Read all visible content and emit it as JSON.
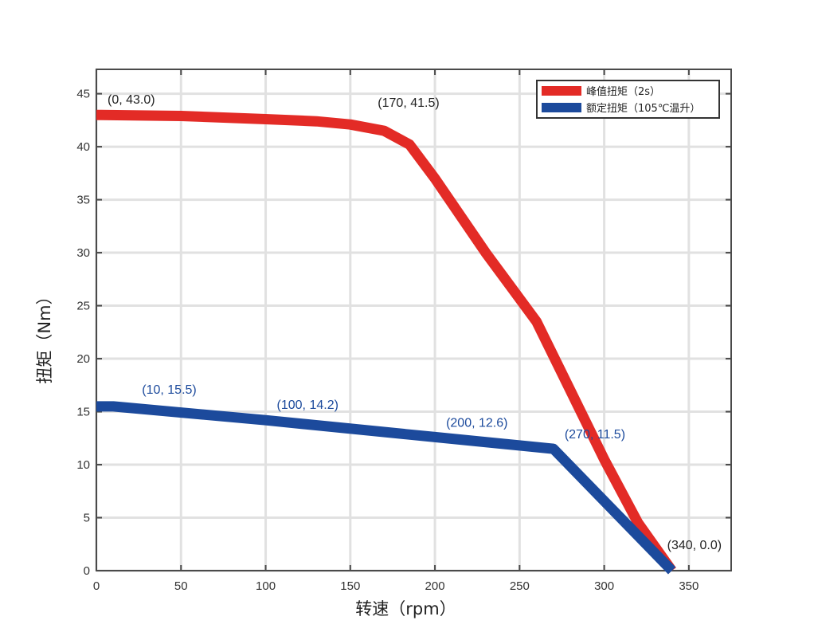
{
  "chart_data": {
    "type": "line",
    "xlabel": "转速（rpm）",
    "ylabel": "扭矩（Nm）",
    "xlim": [
      0,
      375
    ],
    "ylim": [
      0,
      47.3
    ],
    "xticks": [
      0,
      50,
      100,
      150,
      200,
      250,
      300,
      350
    ],
    "yticks": [
      0,
      5,
      10,
      15,
      20,
      25,
      30,
      35,
      40,
      45
    ],
    "grid": true,
    "legend_position": "top-right",
    "series": [
      {
        "name": "峰值扭矩（2s）",
        "color": "#e32b26",
        "x": [
          0,
          50,
          100,
          130,
          150,
          170,
          185,
          200,
          230,
          260,
          280,
          300,
          320,
          340
        ],
        "y": [
          43.0,
          42.9,
          42.6,
          42.4,
          42.1,
          41.5,
          40.2,
          37.0,
          30.0,
          23.5,
          17.0,
          10.5,
          4.5,
          0.0
        ]
      },
      {
        "name": "额定扭矩（105℃温升）",
        "color": "#1c4a9c",
        "x": [
          0,
          10,
          100,
          200,
          270,
          340
        ],
        "y": [
          15.5,
          15.5,
          14.2,
          12.6,
          11.5,
          0.0
        ]
      }
    ],
    "annotations": [
      {
        "text": "(0, 43.0)",
        "x": 0,
        "y": 43.0,
        "color": "#222222"
      },
      {
        "text": "(170, 41.5)",
        "x": 170,
        "y": 41.5,
        "color": "#222222"
      },
      {
        "text": "(10, 15.5)",
        "x": 10,
        "y": 15.5,
        "color": "#1c4a9c"
      },
      {
        "text": "(100, 14.2)",
        "x": 100,
        "y": 14.2,
        "color": "#1c4a9c"
      },
      {
        "text": "(200, 12.6)",
        "x": 200,
        "y": 12.6,
        "color": "#1c4a9c"
      },
      {
        "text": "(270, 11.5)",
        "x": 270,
        "y": 11.5,
        "color": "#1c4a9c"
      },
      {
        "text": "(340, 0.0)",
        "x": 340,
        "y": 0.0,
        "color": "#222222"
      }
    ]
  }
}
